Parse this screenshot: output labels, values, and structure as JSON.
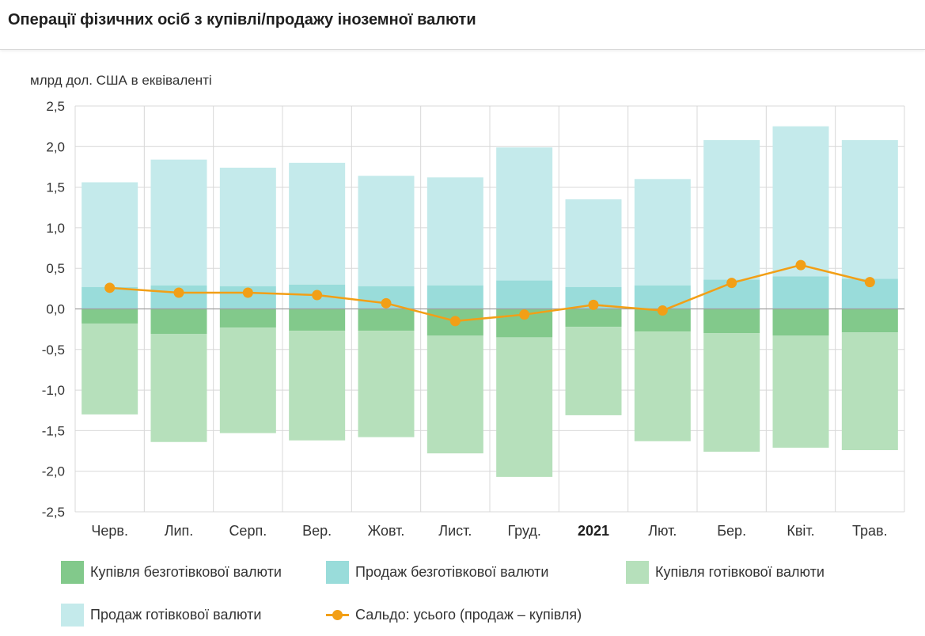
{
  "header": {
    "title": "Операції фізичних осіб з купівлі/продажу іноземної валюти"
  },
  "colors": {
    "buy_noncash": "#82c98b",
    "sell_noncash": "#99dcda",
    "buy_cash": "#b6e0bb",
    "sell_cash": "#c4eaeb",
    "balance": "#f29f16",
    "grid": "#d8d8d8",
    "zero_line": "#9e9e9e"
  },
  "chart_data": {
    "type": "bar",
    "stacked": true,
    "ylabel": "млрд дол. США в еквіваленті",
    "ylim": [
      -2.5,
      2.5
    ],
    "yticks": [
      2.5,
      2.0,
      1.5,
      1.0,
      0.5,
      0.0,
      -0.5,
      -1.0,
      -1.5,
      -2.0,
      -2.5
    ],
    "ytick_labels": [
      "2,5",
      "2,0",
      "1,5",
      "1,0",
      "0,5",
      "0,0",
      "-0,5",
      "-1,0",
      "-1,5",
      "-2,0",
      "-2,5"
    ],
    "categories": [
      "Черв.",
      "Лип.",
      "Серп.",
      "Вер.",
      "Жовт.",
      "Лист.",
      "Груд.",
      "2021",
      "Лют.",
      "Бер.",
      "Квіт.",
      "Трав."
    ],
    "bold_categories": [
      "2021"
    ],
    "grid": true,
    "legend_position": "bottom",
    "series": [
      {
        "name": "Купівля безготівкової валюти",
        "kind": "bar",
        "values": [
          -0.18,
          -0.31,
          -0.23,
          -0.27,
          -0.27,
          -0.33,
          -0.35,
          -0.22,
          -0.28,
          -0.3,
          -0.33,
          -0.29
        ]
      },
      {
        "name": "Продаж безготівкової валюти",
        "kind": "bar",
        "values": [
          0.27,
          0.29,
          0.28,
          0.3,
          0.28,
          0.29,
          0.35,
          0.27,
          0.29,
          0.36,
          0.4,
          0.37
        ]
      },
      {
        "name": "Купівля готівкової валюти",
        "kind": "bar",
        "values": [
          -1.12,
          -1.33,
          -1.3,
          -1.35,
          -1.31,
          -1.45,
          -1.72,
          -1.09,
          -1.35,
          -1.46,
          -1.38,
          -1.45
        ]
      },
      {
        "name": "Продаж готівкової валюти",
        "kind": "bar",
        "values": [
          1.29,
          1.55,
          1.46,
          1.5,
          1.36,
          1.33,
          1.64,
          1.08,
          1.31,
          1.72,
          1.85,
          1.71
        ]
      },
      {
        "name": "Сальдо: усього (продаж – купівля)",
        "kind": "line",
        "values": [
          0.26,
          0.2,
          0.2,
          0.17,
          0.07,
          -0.15,
          -0.07,
          0.05,
          -0.02,
          0.32,
          0.54,
          0.33
        ]
      }
    ]
  }
}
